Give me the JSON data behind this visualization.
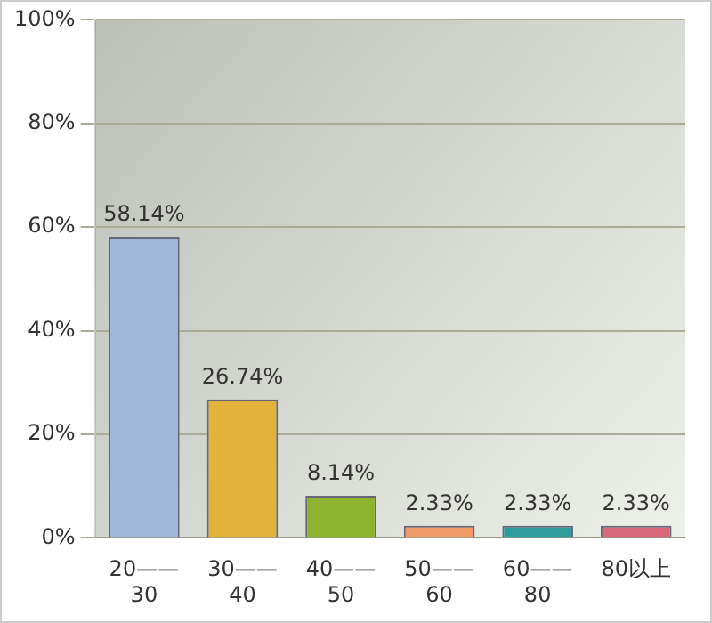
{
  "chart_data": {
    "type": "bar",
    "categories": [
      "20——30",
      "30——40",
      "40——50",
      "50——60",
      "60——80",
      "80以上"
    ],
    "values": [
      58.14,
      26.74,
      8.14,
      2.33,
      2.33,
      2.33
    ],
    "value_labels": [
      "58.14%",
      "26.74%",
      "8.14%",
      "2.33%",
      "2.33%",
      "2.33%"
    ],
    "colors": [
      "#9fb8d6",
      "#e2b23a",
      "#8cb42e",
      "#f09a6a",
      "#2f9c9c",
      "#d9687a"
    ],
    "ylim": [
      0,
      100
    ],
    "yticks": [
      {
        "value": 0,
        "label": "0%"
      },
      {
        "value": 20,
        "label": "20%"
      },
      {
        "value": 40,
        "label": "40%"
      },
      {
        "value": 60,
        "label": "60%"
      },
      {
        "value": 80,
        "label": "80%"
      },
      {
        "value": 100,
        "label": "100%"
      }
    ],
    "grid": "y",
    "legend": false
  }
}
